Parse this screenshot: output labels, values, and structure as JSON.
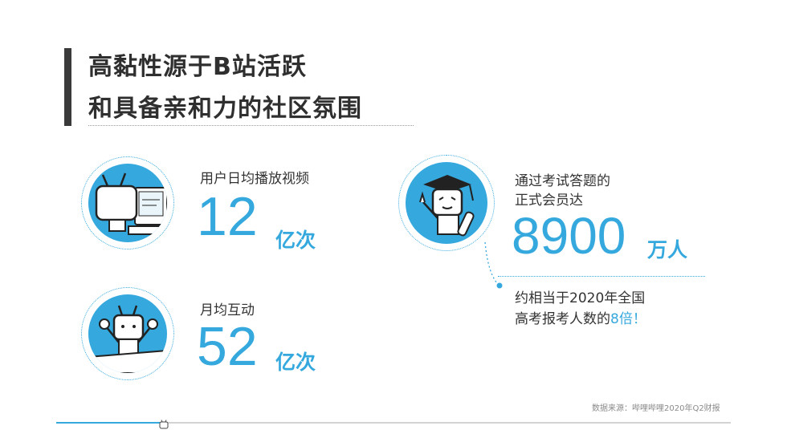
{
  "title": {
    "line1": "高黏性源于B站活跃",
    "line2": "和具备亲和力的社区氛围"
  },
  "stats": {
    "daily_video": {
      "label": "用户日均播放视频",
      "value": "12",
      "unit": "亿次"
    },
    "interaction": {
      "label": "月均互动",
      "value": "52",
      "unit": "亿次"
    },
    "members": {
      "label_line1": "通过考试答题的",
      "label_line2": "正式会员达",
      "value": "8900",
      "unit": "万人",
      "note_line1": "约相当于2020年全国",
      "note_line2_prefix": "高考报考人数的",
      "note_highlight": "8倍！"
    }
  },
  "source": "数据来源：哔哩哔哩2020年Q2财报",
  "progress": {
    "fraction": 0.16
  },
  "colors": {
    "accent": "#35a8de",
    "title": "#2f2f2f",
    "bar": "#3a3a3a"
  },
  "icons": [
    "tv-mascot-computer-icon",
    "tv-mascot-hands-up-icon",
    "tv-mascot-graduate-icon",
    "tv-mascot-progress-icon"
  ]
}
